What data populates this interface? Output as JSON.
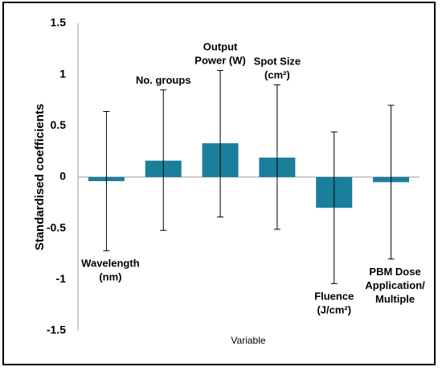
{
  "chart_data": {
    "type": "bar",
    "xlabel": "Variable",
    "ylabel": "Standardised coefficients",
    "ylim": [
      -1.5,
      1.5
    ],
    "yticks": [
      "1.5",
      "1",
      "0.5",
      "0",
      "-0.5",
      "-1",
      "-1.5"
    ],
    "grid": false,
    "bar_color": "#1a7f9b",
    "categories": [
      [
        "Wavelength",
        "(nm)"
      ],
      [
        "No. groups"
      ],
      [
        "Output",
        "Power (W)"
      ],
      [
        "Spot Size",
        "(cm²)"
      ],
      [
        "Fluence",
        "(J/cm²)"
      ],
      [
        "PBM Dose",
        "Application/",
        "Multiple"
      ]
    ],
    "values": [
      -0.04,
      0.16,
      0.33,
      0.19,
      -0.3,
      -0.05
    ],
    "error_low": [
      -0.72,
      -0.52,
      -0.39,
      -0.51,
      -1.04,
      -0.8
    ],
    "error_high": [
      0.64,
      0.85,
      1.04,
      0.9,
      0.44,
      0.7
    ]
  }
}
